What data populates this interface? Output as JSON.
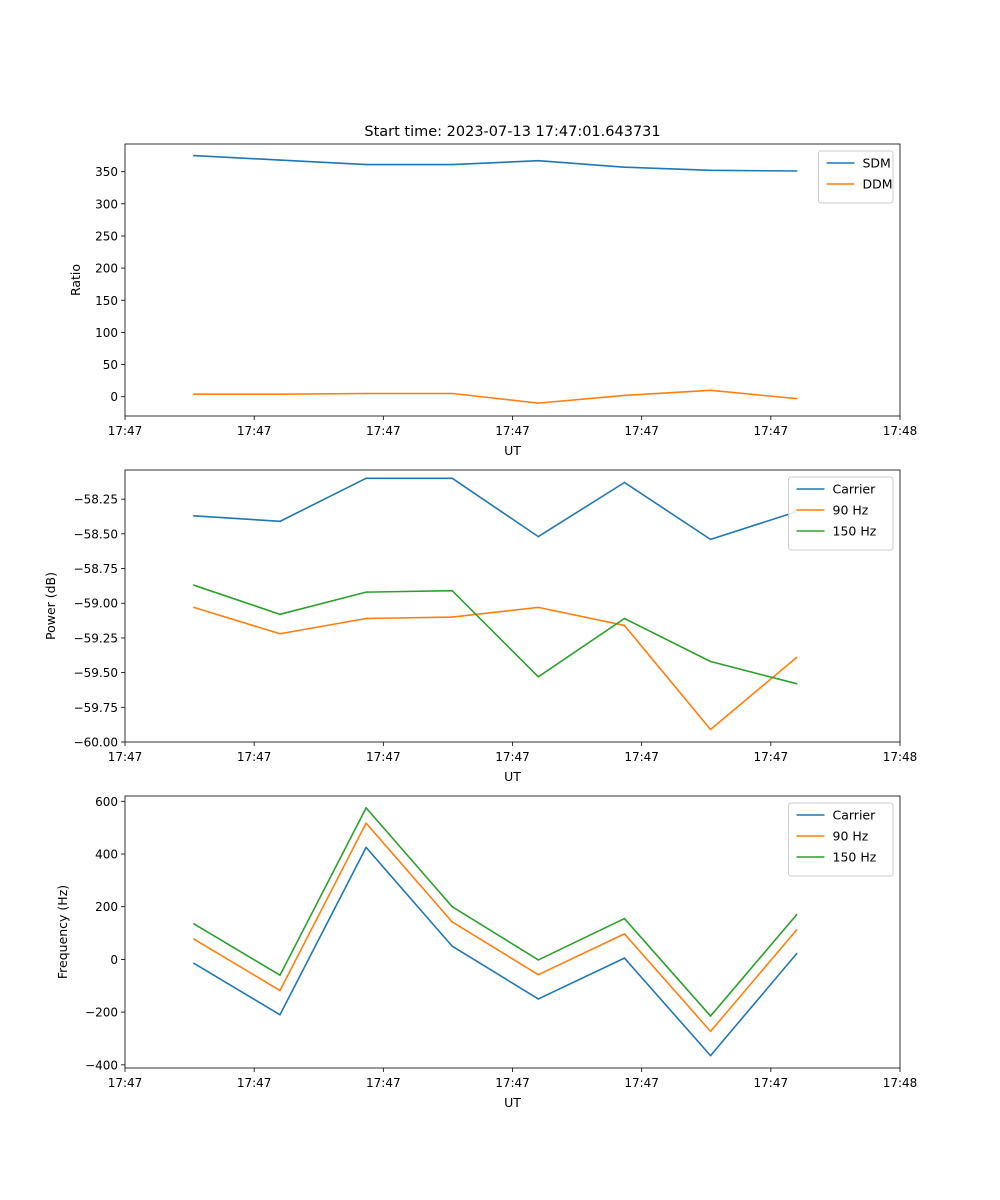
{
  "figure_title": "Start time: 2023-07-13 17:47:01.643731",
  "colors": {
    "blue": "#1f77b4",
    "orange": "#ff7f0e",
    "green": "#2ca02c"
  },
  "chart_data": [
    {
      "type": "line",
      "title": "Start time: 2023-07-13 17:47:01.643731",
      "xlabel": "UT",
      "ylabel": "Ratio",
      "x": [
        1,
        2,
        3,
        4,
        5,
        6,
        7,
        8
      ],
      "xlim": [
        0.2,
        9.2
      ],
      "xticks": [
        0.2,
        1.7,
        3.2,
        4.7,
        6.2,
        7.7,
        9.2
      ],
      "xtick_labels": [
        "17:47",
        "17:47",
        "17:47",
        "17:47",
        "17:47",
        "17:47",
        "17:48"
      ],
      "ylim": [
        -30,
        393
      ],
      "yticks": [
        0,
        50,
        100,
        150,
        200,
        250,
        300,
        350
      ],
      "ytick_labels": [
        "0",
        "50",
        "100",
        "150",
        "200",
        "250",
        "300",
        "350"
      ],
      "legend_position": "top-right",
      "series": [
        {
          "name": "SDM",
          "color": "#1f77b4",
          "values": [
            375,
            368,
            361,
            361,
            367,
            357,
            352,
            351
          ]
        },
        {
          "name": "DDM",
          "color": "#ff7f0e",
          "values": [
            4,
            4,
            5,
            5,
            -10,
            2,
            10,
            -3
          ]
        }
      ]
    },
    {
      "type": "line",
      "title": "",
      "xlabel": "UT",
      "ylabel": "Power (dB)",
      "x": [
        1,
        2,
        3,
        4,
        5,
        6,
        7,
        8
      ],
      "xlim": [
        0.2,
        9.2
      ],
      "xticks": [
        0.2,
        1.7,
        3.2,
        4.7,
        6.2,
        7.7,
        9.2
      ],
      "xtick_labels": [
        "17:47",
        "17:47",
        "17:47",
        "17:47",
        "17:47",
        "17:47",
        "17:48"
      ],
      "ylim": [
        -60,
        -58.04
      ],
      "yticks": [
        -60.0,
        -59.75,
        -59.5,
        -59.25,
        -59.0,
        -58.75,
        -58.5,
        -58.25
      ],
      "ytick_labels": [
        "−60.00",
        "−59.75",
        "−59.50",
        "−59.25",
        "−59.00",
        "−58.75",
        "−58.50",
        "−58.25"
      ],
      "legend_position": "top-right",
      "series": [
        {
          "name": "Carrier",
          "color": "#1f77b4",
          "values": [
            -58.37,
            -58.41,
            -58.1,
            -58.1,
            -58.52,
            -58.13,
            -58.54,
            -58.34
          ]
        },
        {
          "name": "90 Hz",
          "color": "#ff7f0e",
          "values": [
            -59.03,
            -59.22,
            -59.11,
            -59.1,
            -59.03,
            -59.16,
            -59.91,
            -59.39
          ]
        },
        {
          "name": "150 Hz",
          "color": "#2ca02c",
          "values": [
            -58.87,
            -59.08,
            -58.92,
            -58.91,
            -59.53,
            -59.11,
            -59.42,
            -59.58
          ]
        }
      ]
    },
    {
      "type": "line",
      "title": "",
      "xlabel": "UT",
      "ylabel": "Frequency (Hz)",
      "x": [
        1,
        2,
        3,
        4,
        5,
        6,
        7,
        8
      ],
      "xlim": [
        0.2,
        9.2
      ],
      "xticks": [
        0.2,
        1.7,
        3.2,
        4.7,
        6.2,
        7.7,
        9.2
      ],
      "xtick_labels": [
        "17:47",
        "17:47",
        "17:47",
        "17:47",
        "17:47",
        "17:47",
        "17:48"
      ],
      "ylim": [
        -412,
        620
      ],
      "yticks": [
        -400,
        -200,
        0,
        200,
        400,
        600
      ],
      "ytick_labels": [
        "−400",
        "−200",
        "0",
        "200",
        "400",
        "600"
      ],
      "legend_position": "top-right",
      "series": [
        {
          "name": "Carrier",
          "color": "#1f77b4",
          "values": [
            -15,
            -210,
            425,
            50,
            -150,
            5,
            -365,
            22
          ]
        },
        {
          "name": "90 Hz",
          "color": "#ff7f0e",
          "values": [
            77,
            -118,
            517,
            142,
            -58,
            97,
            -273,
            112
          ]
        },
        {
          "name": "150 Hz",
          "color": "#2ca02c",
          "values": [
            135,
            -60,
            575,
            200,
            -2,
            155,
            -215,
            170
          ]
        }
      ]
    }
  ]
}
